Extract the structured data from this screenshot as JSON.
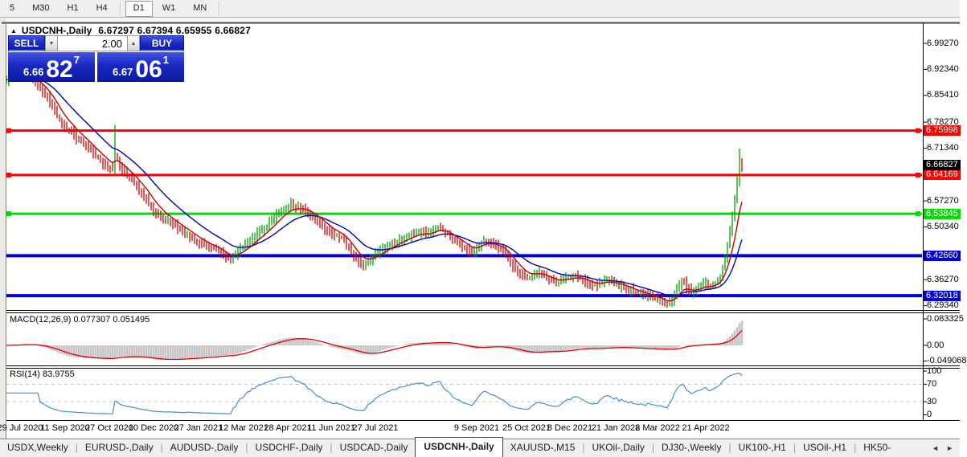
{
  "toolbar": {
    "timeframes": [
      {
        "label": "5",
        "active": false,
        "sep_before": false
      },
      {
        "label": "M30",
        "active": false,
        "sep_before": false
      },
      {
        "label": "H1",
        "active": false,
        "sep_before": false
      },
      {
        "label": "H4",
        "active": false,
        "sep_before": false
      },
      {
        "label": "D1",
        "active": true,
        "sep_before": true
      },
      {
        "label": "W1",
        "active": false,
        "sep_before": false
      },
      {
        "label": "MN",
        "active": false,
        "sep_before": false
      }
    ]
  },
  "chart": {
    "title_symbol": "USDCNH-,Daily",
    "title_ohlc": "6.67297 6.67394 6.65955 6.66827"
  },
  "trade_panel": {
    "sell_label": "SELL",
    "buy_label": "BUY",
    "volume": "2.00",
    "sell_price_small": "6.66",
    "sell_price_big": "82",
    "sell_price_sup": "7",
    "buy_price_small": "6.67",
    "buy_price_big": "06",
    "buy_price_sup": "1"
  },
  "indicators": {
    "macd_label": "MACD(12,26,9) 0.077307 0.051495",
    "rsi_label": "RSI(14) 83.9755"
  },
  "icons": {
    "collapse_triangle": "▲",
    "spin_up": "▲",
    "spin_down": "▼",
    "tab_scroll_left": "◄",
    "tab_scroll_right": "►",
    "tab_separator": "|"
  },
  "price_scale": {
    "ticks": [
      "6.99270",
      "6.92340",
      "6.85410",
      "6.78270",
      "6.71340",
      "6.57270",
      "6.50340",
      "6.36270",
      "6.29340"
    ],
    "current": {
      "text": "6.66827",
      "price": 6.66827
    },
    "macd_ticks": [
      {
        "text": "0.083325",
        "v": 0.083325
      },
      {
        "text": "0.00",
        "v": 0
      },
      {
        "text": "-0.049068",
        "v": -0.049068
      }
    ],
    "rsi_ticks": [
      {
        "text": "100",
        "v": 100
      },
      {
        "text": "70",
        "v": 70
      },
      {
        "text": "30",
        "v": 30
      },
      {
        "text": "0",
        "v": 0
      }
    ]
  },
  "chart_data": {
    "type": "candlestick",
    "symbol": "USDCNH-",
    "timeframe": "Daily",
    "ohlc_current": {
      "open": 6.67297,
      "high": 6.67394,
      "low": 6.65955,
      "close": 6.66827
    },
    "y_axis_ticks": [
      6.9927,
      6.9234,
      6.8541,
      6.7827,
      6.7134,
      6.5727,
      6.5034,
      6.3627,
      6.2934
    ],
    "y_range": [
      6.2835,
      7.048
    ],
    "x_labels": [
      {
        "text": "29 Jul 2020",
        "x": 25
      },
      {
        "text": "11 Sep 2020",
        "x": 81
      },
      {
        "text": "27 Oct 2020",
        "x": 136
      },
      {
        "text": "10 Dec 2020",
        "x": 191
      },
      {
        "text": "27 Jan 2021",
        "x": 247
      },
      {
        "text": "12 Mar 2021",
        "x": 303
      },
      {
        "text": "28 Apr 2021",
        "x": 358
      },
      {
        "text": "11 Jun 2021",
        "x": 412
      },
      {
        "text": "27 Jul 2021",
        "x": 467
      },
      {
        "text": "9 Sep 2021",
        "x": 593
      },
      {
        "text": "25 Oct 2021",
        "x": 655
      },
      {
        "text": "8 Dec 2021",
        "x": 709
      },
      {
        "text": "21 Jan 2022",
        "x": 766
      },
      {
        "text": "8 Mar 2022",
        "x": 818
      },
      {
        "text": "21 Apr 2022",
        "x": 878
      }
    ],
    "levels": [
      {
        "price": 6.75998,
        "label": "6.75998",
        "color": "#fe0000",
        "width": 3,
        "markers": true
      },
      {
        "price": 6.64169,
        "label": "6.64169",
        "color": "#fe0000",
        "width": 3,
        "markers": true
      },
      {
        "price": 6.53845,
        "label": "6.53845",
        "color": "#00db00",
        "width": 3,
        "markers": true
      },
      {
        "price": 6.4266,
        "label": "6.42660",
        "color": "#0000dc",
        "width": 4,
        "markers": false
      },
      {
        "price": 6.32018,
        "label": "6.32018",
        "color": "#0000dc",
        "width": 4,
        "markers": false
      }
    ],
    "close_path": [
      [
        8,
        6.895
      ],
      [
        18,
        6.905
      ],
      [
        28,
        6.912
      ],
      [
        38,
        6.9
      ],
      [
        46,
        6.885
      ],
      [
        54,
        6.862
      ],
      [
        62,
        6.838
      ],
      [
        70,
        6.805
      ],
      [
        76,
        6.78
      ],
      [
        84,
        6.765
      ],
      [
        92,
        6.748
      ],
      [
        100,
        6.732
      ],
      [
        108,
        6.717
      ],
      [
        116,
        6.702
      ],
      [
        124,
        6.682
      ],
      [
        132,
        6.668
      ],
      [
        140,
        6.658
      ],
      [
        144,
        6.698
      ],
      [
        150,
        6.662
      ],
      [
        158,
        6.642
      ],
      [
        166,
        6.622
      ],
      [
        174,
        6.6
      ],
      [
        182,
        6.578
      ],
      [
        190,
        6.552
      ],
      [
        198,
        6.532
      ],
      [
        206,
        6.52
      ],
      [
        214,
        6.51
      ],
      [
        222,
        6.5
      ],
      [
        230,
        6.487
      ],
      [
        238,
        6.474
      ],
      [
        246,
        6.464
      ],
      [
        254,
        6.455
      ],
      [
        262,
        6.447
      ],
      [
        270,
        6.438
      ],
      [
        278,
        6.427
      ],
      [
        286,
        6.417
      ],
      [
        294,
        6.43
      ],
      [
        302,
        6.448
      ],
      [
        310,
        6.465
      ],
      [
        318,
        6.48
      ],
      [
        326,
        6.497
      ],
      [
        334,
        6.512
      ],
      [
        342,
        6.53
      ],
      [
        350,
        6.548
      ],
      [
        358,
        6.558
      ],
      [
        364,
        6.563
      ],
      [
        372,
        6.553
      ],
      [
        380,
        6.545
      ],
      [
        388,
        6.534
      ],
      [
        396,
        6.518
      ],
      [
        404,
        6.5
      ],
      [
        412,
        6.488
      ],
      [
        420,
        6.478
      ],
      [
        428,
        6.468
      ],
      [
        434,
        6.448
      ],
      [
        440,
        6.425
      ],
      [
        446,
        6.408
      ],
      [
        452,
        6.4
      ],
      [
        458,
        6.412
      ],
      [
        466,
        6.428
      ],
      [
        474,
        6.443
      ],
      [
        482,
        6.455
      ],
      [
        490,
        6.463
      ],
      [
        498,
        6.472
      ],
      [
        506,
        6.48
      ],
      [
        514,
        6.487
      ],
      [
        522,
        6.49
      ],
      [
        530,
        6.484
      ],
      [
        538,
        6.492
      ],
      [
        546,
        6.5
      ],
      [
        554,
        6.49
      ],
      [
        562,
        6.475
      ],
      [
        570,
        6.46
      ],
      [
        578,
        6.445
      ],
      [
        586,
        6.436
      ],
      [
        594,
        6.45
      ],
      [
        602,
        6.466
      ],
      [
        610,
        6.458
      ],
      [
        618,
        6.45
      ],
      [
        626,
        6.44
      ],
      [
        632,
        6.418
      ],
      [
        638,
        6.395
      ],
      [
        646,
        6.378
      ],
      [
        654,
        6.368
      ],
      [
        662,
        6.372
      ],
      [
        670,
        6.378
      ],
      [
        678,
        6.372
      ],
      [
        686,
        6.362
      ],
      [
        694,
        6.356
      ],
      [
        702,
        6.362
      ],
      [
        710,
        6.368
      ],
      [
        718,
        6.372
      ],
      [
        726,
        6.362
      ],
      [
        734,
        6.352
      ],
      [
        742,
        6.348
      ],
      [
        750,
        6.356
      ],
      [
        758,
        6.362
      ],
      [
        766,
        6.352
      ],
      [
        774,
        6.344
      ],
      [
        782,
        6.338
      ],
      [
        790,
        6.33
      ],
      [
        798,
        6.324
      ],
      [
        806,
        6.318
      ],
      [
        814,
        6.31
      ],
      [
        822,
        6.306
      ],
      [
        830,
        6.3
      ],
      [
        836,
        6.312
      ],
      [
        842,
        6.335
      ],
      [
        848,
        6.358
      ],
      [
        854,
        6.345
      ],
      [
        860,
        6.33
      ],
      [
        866,
        6.336
      ],
      [
        872,
        6.345
      ],
      [
        878,
        6.35
      ],
      [
        884,
        6.344
      ],
      [
        890,
        6.352
      ],
      [
        896,
        6.372
      ],
      [
        901,
        6.41
      ],
      [
        905,
        6.455
      ],
      [
        909,
        6.505
      ],
      [
        913,
        6.555
      ],
      [
        916,
        6.61
      ],
      [
        919,
        6.662
      ],
      [
        921,
        6.695
      ],
      [
        923,
        6.66
      ],
      [
        925,
        6.668
      ]
    ],
    "spikes": [
      {
        "x": 144,
        "high": 6.775
      },
      {
        "x": 920,
        "high": 6.712
      }
    ],
    "overlays": {
      "ma_fast_period": 8,
      "ma_slow_period": 21
    },
    "macd": {
      "params": [
        12,
        26,
        9
      ],
      "last_main": 0.077307,
      "last_signal": 0.051495,
      "scale_max": 0.083325,
      "scale_min": -0.049068
    },
    "rsi": {
      "period": 14,
      "last": 83.9755,
      "levels": [
        70,
        30
      ],
      "scale": [
        0,
        100
      ]
    }
  },
  "tabs": {
    "items": [
      {
        "label": "USDX,Weekly",
        "active": false
      },
      {
        "label": "EURUSD-,Daily",
        "active": false
      },
      {
        "label": "AUDUSD-,Daily",
        "active": false
      },
      {
        "label": "USDCHF-,Daily",
        "active": false
      },
      {
        "label": "USDCAD-,Daily",
        "active": false
      },
      {
        "label": "USDCNH-,Daily",
        "active": true
      },
      {
        "label": "XAUUSD-,M15",
        "active": false
      },
      {
        "label": "UKOil-,Daily",
        "active": false
      },
      {
        "label": "DJ30-,Weekly",
        "active": false
      },
      {
        "label": "UK100-,H1",
        "active": false
      },
      {
        "label": "USOil-,H1",
        "active": false
      },
      {
        "label": "HK50-",
        "active": false
      }
    ]
  },
  "colors": {
    "bar_up": "#00a000",
    "bar_down": "#d40000",
    "ma_fast": "#c80000",
    "ma_slow": "#0000c0",
    "macd_hist": "#c6c6c6",
    "macd_signal": "#e00000",
    "rsi_line": "#3e8fd9",
    "level_red": "#fe0000",
    "level_green": "#00db00",
    "level_blue": "#0000dc",
    "label_black_bg": "#000000"
  }
}
